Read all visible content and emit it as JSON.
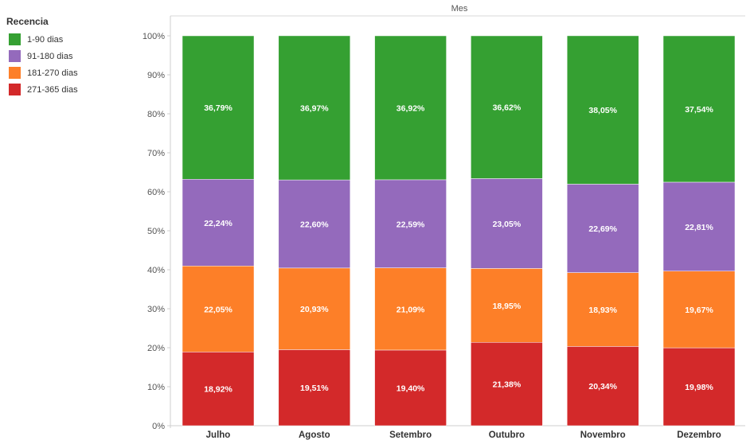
{
  "legend": {
    "title": "Recencia",
    "items": [
      {
        "label": "1-90 dias",
        "color": "#35a032"
      },
      {
        "label": "91-180 dias",
        "color": "#946abc"
      },
      {
        "label": "181-270 dias",
        "color": "#fd7f28"
      },
      {
        "label": "271-365 dias",
        "color": "#d3292a"
      }
    ]
  },
  "chart_data": {
    "type": "bar",
    "stacked": true,
    "top_axis_label": "Mes",
    "categories": [
      "Julho",
      "Agosto",
      "Setembro",
      "Outubro",
      "Novembro",
      "Dezembro"
    ],
    "ylim": [
      0,
      100
    ],
    "yticks": [
      "0%",
      "10%",
      "20%",
      "30%",
      "40%",
      "50%",
      "60%",
      "70%",
      "80%",
      "90%",
      "100%"
    ],
    "grid": false,
    "legend_position": "top-left",
    "series": [
      {
        "name": "271-365 dias",
        "color": "#d3292a",
        "values": [
          18.92,
          19.51,
          19.4,
          21.38,
          20.34,
          19.98
        ],
        "labels": [
          "18,92%",
          "19,51%",
          "19,40%",
          "21,38%",
          "20,34%",
          "19,98%"
        ]
      },
      {
        "name": "181-270 dias",
        "color": "#fd7f28",
        "values": [
          22.05,
          20.93,
          21.09,
          18.95,
          18.93,
          19.67
        ],
        "labels": [
          "22,05%",
          "20,93%",
          "21,09%",
          "18,95%",
          "18,93%",
          "19,67%"
        ]
      },
      {
        "name": "91-180 dias",
        "color": "#946abc",
        "values": [
          22.24,
          22.6,
          22.59,
          23.05,
          22.69,
          22.81
        ],
        "labels": [
          "22,24%",
          "22,60%",
          "22,59%",
          "23,05%",
          "22,69%",
          "22,81%"
        ]
      },
      {
        "name": "1-90 dias",
        "color": "#35a032",
        "values": [
          36.79,
          36.97,
          36.92,
          36.62,
          38.05,
          37.54
        ],
        "labels": [
          "36,79%",
          "36,97%",
          "36,92%",
          "36,62%",
          "38,05%",
          "37,54%"
        ]
      }
    ]
  }
}
